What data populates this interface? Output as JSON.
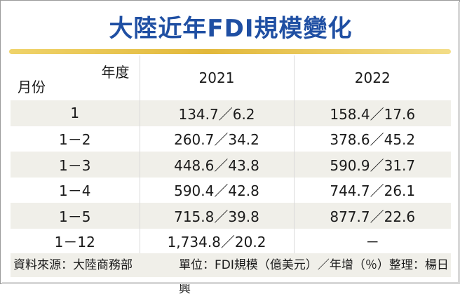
{
  "title": "大陸近年FDI規模變化",
  "table": {
    "corner_year": "年度",
    "corner_month": "月份",
    "years": [
      "2021",
      "2022"
    ],
    "rows": [
      {
        "month": "1",
        "y2021": "134.7／6.2",
        "y2022": "158.4／17.6"
      },
      {
        "month": "1－2",
        "y2021": "260.7／34.2",
        "y2022": "378.6／45.2"
      },
      {
        "month": "1－3",
        "y2021": "448.6／43.8",
        "y2022": "590.9／31.7"
      },
      {
        "month": "1－4",
        "y2021": "590.4／42.8",
        "y2022": "744.7／26.1"
      },
      {
        "month": "1－5",
        "y2021": "715.8／39.8",
        "y2022": "877.7／22.6"
      },
      {
        "month": "1－12",
        "y2021": "1,734.8／20.2",
        "y2022": "－"
      }
    ]
  },
  "footer": {
    "source": "資料來源：大陸商務部",
    "unit": "單位：FDI規模（億美元）／年增（％）整理：楊日興"
  },
  "colors": {
    "title": "#1f4fa3",
    "rule": "#e2b83a",
    "shade": "#f0efe9"
  }
}
